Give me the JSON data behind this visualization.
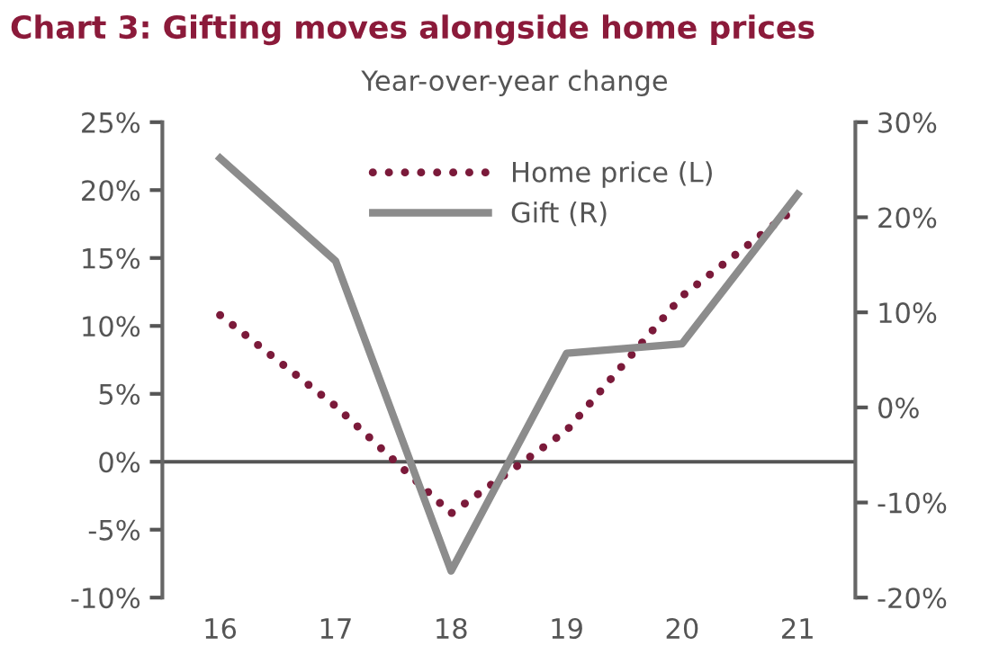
{
  "chart_data": {
    "type": "line",
    "title": "Chart 3: Gifting moves alongside home prices",
    "subtitle": "Year-over-year change",
    "categories": [
      "16",
      "17",
      "18",
      "19",
      "20",
      "21"
    ],
    "series": [
      {
        "name": "Home price (L)",
        "color": "#7b1a3a",
        "line_style": "dotted",
        "values": [
          10.8,
          4.1,
          -3.8,
          2.3,
          12.2,
          18.8
        ]
      },
      {
        "name": "Gift (R)",
        "color": "#8c8c8c",
        "line_style": "solid",
        "axis": "y2",
        "values": [
          26.2,
          15.4,
          -17.2,
          5.7,
          6.7,
          22.4
        ]
      }
    ],
    "ylim": [
      -10,
      25
    ],
    "yticks": [
      {
        "value": -10,
        "label": "-10%"
      },
      {
        "value": -5,
        "label": "-5%"
      },
      {
        "value": 0,
        "label": "0%"
      },
      {
        "value": 5,
        "label": "5%"
      },
      {
        "value": 10,
        "label": "10%"
      },
      {
        "value": 15,
        "label": "15%"
      },
      {
        "value": 20,
        "label": "20%"
      },
      {
        "value": 25,
        "label": "25%"
      }
    ],
    "y2lim": [
      -20,
      30
    ],
    "y2ticks": [
      {
        "value": -20,
        "label": "-20%"
      },
      {
        "value": -10,
        "label": "-10%"
      },
      {
        "value": 0,
        "label": "0%"
      },
      {
        "value": 10,
        "label": "10%"
      },
      {
        "value": 20,
        "label": "20%"
      },
      {
        "value": 30,
        "label": "30%"
      }
    ],
    "ref_lines": [
      {
        "axis": "y",
        "value": 0,
        "color": "#555555"
      }
    ],
    "grid": false,
    "legend": "top",
    "marker": "none"
  }
}
